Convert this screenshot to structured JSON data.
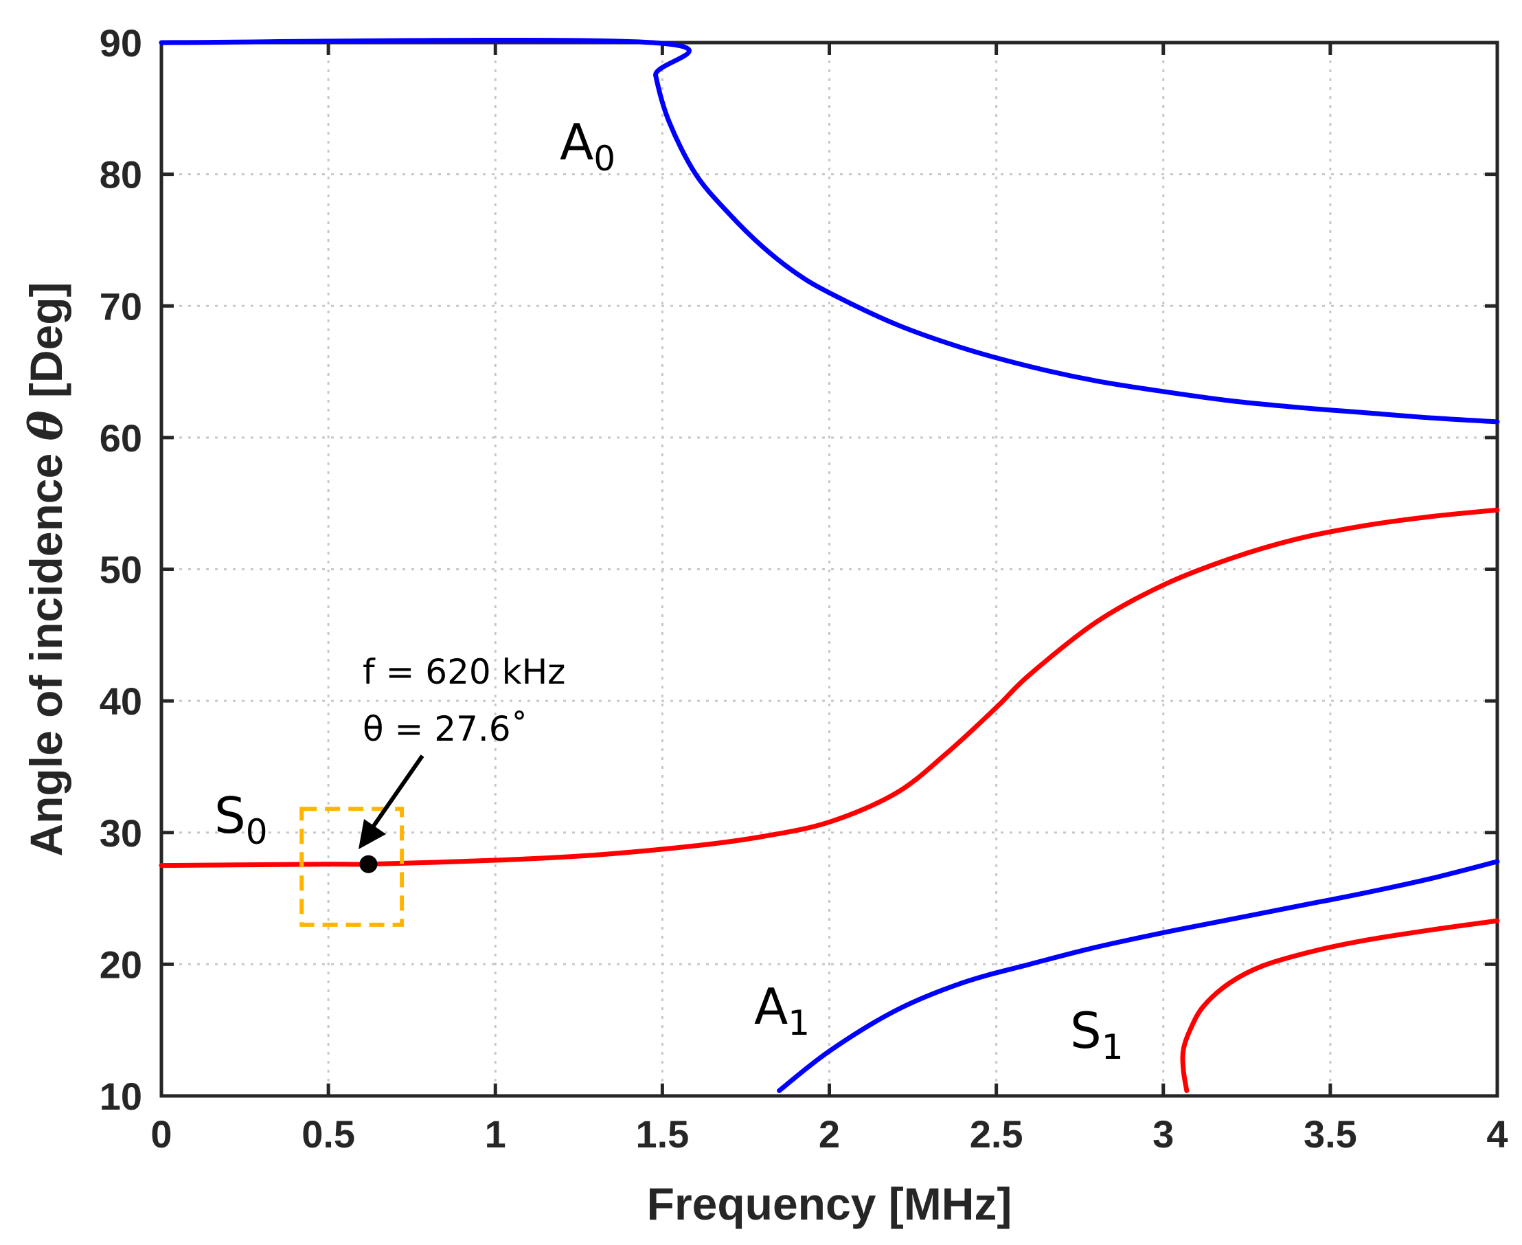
{
  "chart_data": {
    "type": "line",
    "title": "",
    "xlabel": "Frequency [MHz]",
    "ylabel_prefix": "Angle of incidence ",
    "ylabel_symbol": "θ",
    "ylabel_suffix": " [Deg]",
    "xlim": [
      0,
      4
    ],
    "ylim": [
      10,
      90
    ],
    "xticks": [
      0,
      0.5,
      1,
      1.5,
      2,
      2.5,
      3,
      3.5,
      4
    ],
    "xtick_labels": [
      "0",
      "0.5",
      "1",
      "1.5",
      "2",
      "2.5",
      "3",
      "3.5",
      "4"
    ],
    "yticks": [
      10,
      20,
      30,
      40,
      50,
      60,
      70,
      80,
      90
    ],
    "ytick_labels": [
      "10",
      "20",
      "30",
      "40",
      "50",
      "60",
      "70",
      "80",
      "90"
    ],
    "grid": true,
    "colors": {
      "antisymmetric": "#0000ff",
      "symmetric": "#ff0000",
      "highlight": "#ffb400",
      "axis": "#262626",
      "grid": "#c8c8c8"
    },
    "series": [
      {
        "name": "A0",
        "label_main": "A",
        "label_sub": "0",
        "color": "#0000ff",
        "points": [
          [
            0,
            90
          ],
          [
            1.47,
            90
          ],
          [
            1.48,
            87.5
          ],
          [
            1.52,
            84
          ],
          [
            1.6,
            80
          ],
          [
            1.7,
            77
          ],
          [
            1.8,
            74.5
          ],
          [
            1.9,
            72.5
          ],
          [
            2.0,
            71
          ],
          [
            2.2,
            68.6
          ],
          [
            2.4,
            66.8
          ],
          [
            2.6,
            65.4
          ],
          [
            2.8,
            64.3
          ],
          [
            3.0,
            63.5
          ],
          [
            3.2,
            62.8
          ],
          [
            3.4,
            62.3
          ],
          [
            3.6,
            61.9
          ],
          [
            3.8,
            61.5
          ],
          [
            4.0,
            61.2
          ]
        ]
      },
      {
        "name": "S0",
        "label_main": "S",
        "label_sub": "0",
        "color": "#ff0000",
        "points": [
          [
            0,
            27.5
          ],
          [
            0.5,
            27.6
          ],
          [
            0.62,
            27.6
          ],
          [
            1.0,
            27.9
          ],
          [
            1.3,
            28.3
          ],
          [
            1.6,
            29
          ],
          [
            1.8,
            29.7
          ],
          [
            2.0,
            30.8
          ],
          [
            2.2,
            33
          ],
          [
            2.35,
            36
          ],
          [
            2.5,
            39.5
          ],
          [
            2.6,
            42
          ],
          [
            2.8,
            46
          ],
          [
            3.0,
            48.8
          ],
          [
            3.2,
            50.8
          ],
          [
            3.4,
            52.3
          ],
          [
            3.6,
            53.3
          ],
          [
            3.8,
            54
          ],
          [
            4.0,
            54.5
          ]
        ]
      },
      {
        "name": "A1",
        "label_main": "A",
        "label_sub": "1",
        "color": "#0000ff",
        "points": [
          [
            1.85,
            10.4
          ],
          [
            2.0,
            13.4
          ],
          [
            2.2,
            16.5
          ],
          [
            2.4,
            18.6
          ],
          [
            2.6,
            20
          ],
          [
            2.8,
            21.3
          ],
          [
            3.0,
            22.4
          ],
          [
            3.2,
            23.4
          ],
          [
            3.4,
            24.4
          ],
          [
            3.6,
            25.4
          ],
          [
            3.8,
            26.5
          ],
          [
            4.0,
            27.8
          ]
        ]
      },
      {
        "name": "S1",
        "label_main": "S",
        "label_sub": "1",
        "color": "#ff0000",
        "points": [
          [
            3.07,
            10.4
          ],
          [
            3.06,
            12
          ],
          [
            3.06,
            13.5
          ],
          [
            3.08,
            15
          ],
          [
            3.12,
            16.8
          ],
          [
            3.2,
            18.6
          ],
          [
            3.3,
            19.9
          ],
          [
            3.45,
            21
          ],
          [
            3.6,
            21.8
          ],
          [
            3.8,
            22.6
          ],
          [
            4.0,
            23.3
          ]
        ]
      }
    ],
    "highlight_point": {
      "x": 0.62,
      "y": 27.6
    },
    "highlight_box": {
      "x": [
        0.42,
        0.72
      ],
      "y": [
        23,
        31.8
      ]
    },
    "annotation": {
      "line1": "f = 620 kHz",
      "line2": "θ = 27.6˚"
    }
  }
}
